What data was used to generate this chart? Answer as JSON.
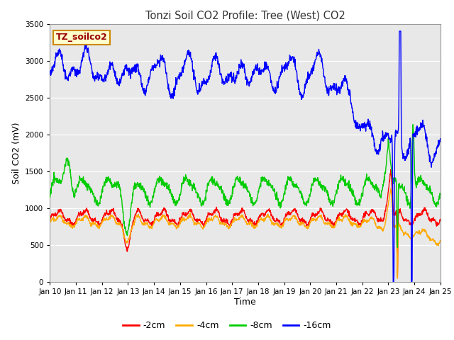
{
  "title": "Tonzi Soil CO2 Profile: Tree (West) CO2",
  "ylabel": "Soil CO2 (mV)",
  "xlabel": "Time",
  "xlabels": [
    "Jan 10",
    "Jan 11",
    "Jan 12",
    "Jan 13",
    "Jan 14",
    "Jan 15",
    "Jan 16",
    "Jan 17",
    "Jan 18",
    "Jan 19",
    "Jan 20",
    "Jan 21",
    "Jan 22",
    "Jan 23",
    "Jan 24",
    "Jan 25"
  ],
  "ylim": [
    0,
    3500
  ],
  "yticks": [
    0,
    500,
    1000,
    1500,
    2000,
    2500,
    3000,
    3500
  ],
  "legend_label": "TZ_soilco2",
  "series_labels": [
    "-2cm",
    "-4cm",
    "-8cm",
    "-16cm"
  ],
  "series_colors": [
    "#ff0000",
    "#ffaa00",
    "#00cc00",
    "#0000ff"
  ],
  "axes_bg_color": "#e8e8e8",
  "title_color": "#333333",
  "line_width": 1.0
}
